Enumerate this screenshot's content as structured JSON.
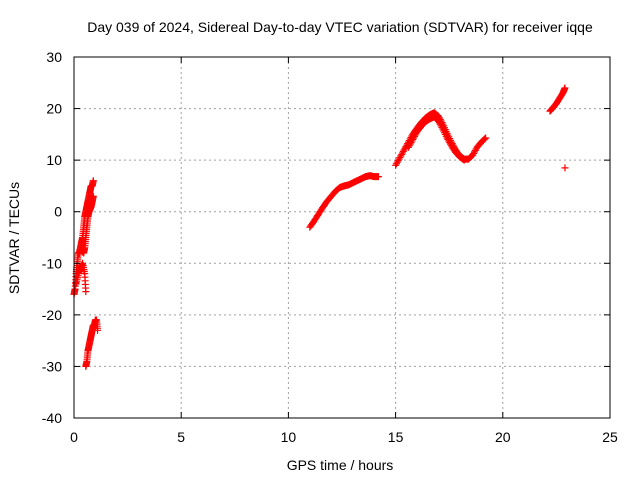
{
  "chart_data": {
    "type": "scatter",
    "title": "Day 039 of 2024, Sidereal Day-to-day VTEC variation (SDTVAR) for receiver iqqe",
    "xlabel": "GPS time / hours",
    "ylabel": "SDTVAR / TECUs",
    "xlim": [
      0,
      25
    ],
    "ylim": [
      -40,
      30
    ],
    "xticks": [
      0,
      5,
      10,
      15,
      20,
      25
    ],
    "yticks": [
      -40,
      -30,
      -20,
      -10,
      0,
      10,
      20,
      30
    ],
    "grid": true,
    "marker": "+",
    "color": "#ff0000",
    "series": [
      {
        "name": "SDTVAR",
        "segments": [
          {
            "x": [
              0.0,
              0.05,
              0.1,
              0.15,
              0.2,
              0.25,
              0.3,
              0.35,
              0.4,
              0.45,
              0.5,
              0.55,
              0.6,
              0.65,
              0.7,
              0.75,
              0.8,
              0.85,
              0.9
            ],
            "y": [
              -16,
              -15,
              -12,
              -10,
              -8,
              -8,
              -7,
              -6,
              -5,
              -3,
              -1,
              0,
              1,
              2,
              3,
              4,
              5,
              5,
              6
            ]
          },
          {
            "x": [
              0.1,
              0.2,
              0.3,
              0.4,
              0.5,
              0.55
            ],
            "y": [
              -14,
              -12,
              -11,
              -10,
              -12,
              -15.5
            ]
          },
          {
            "x": [
              0.35,
              0.45,
              0.5,
              0.55,
              0.6,
              0.65,
              0.7,
              0.75,
              0.8,
              0.85,
              0.9
            ],
            "y": [
              -7.5,
              -8,
              -7,
              -5,
              -3,
              -1,
              0,
              0.5,
              1,
              2,
              3
            ]
          },
          {
            "x": [
              0.55,
              0.6,
              0.65,
              0.7,
              0.75,
              0.8,
              0.85,
              0.9,
              0.95,
              1.0,
              1.05,
              1.1
            ],
            "y": [
              -30,
              -29,
              -27,
              -26,
              -25,
              -24,
              -23,
              -22,
              -22,
              -21,
              -21,
              -23
            ]
          },
          {
            "x": [
              11.0,
              11.2,
              11.4,
              11.6,
              11.8,
              12.0,
              12.2,
              12.4,
              12.6,
              12.8,
              13.0,
              13.2,
              13.4,
              13.6,
              13.8,
              14.0,
              14.2
            ],
            "y": [
              -3,
              -1.8,
              -0.5,
              0.8,
              2,
              3,
              4,
              4.7,
              5,
              5.2,
              5.6,
              6,
              6.4,
              6.8,
              7,
              6.8,
              6.8
            ]
          },
          {
            "x": [
              15.0,
              15.2,
              15.4,
              15.6,
              15.8,
              16.0,
              16.2,
              16.4,
              16.6,
              16.8,
              17.0,
              17.2,
              17.4,
              17.6,
              17.8,
              18.0,
              18.2,
              18.4,
              18.6,
              18.8,
              19.0,
              19.2
            ],
            "y": [
              9,
              10.5,
              12,
              13.5,
              15,
              16.2,
              17.3,
              18.2,
              18.8,
              19.2,
              18.5,
              17,
              15.2,
              13.5,
              12,
              10.8,
              10.2,
              10.2,
              11,
              12.5,
              13.5,
              14.3
            ]
          },
          {
            "x": [
              15.6,
              15.8,
              16.0,
              16.2,
              16.4,
              16.6,
              16.8,
              17.0,
              17.2,
              17.4,
              17.6,
              17.8,
              18.0,
              18.2
            ],
            "y": [
              12.5,
              14,
              15.5,
              16.6,
              17.5,
              18,
              18.4,
              17.6,
              16,
              14.3,
              12.8,
              11.5,
              10.6,
              10
            ]
          },
          {
            "x": [
              22.2,
              22.35,
              22.5,
              22.65,
              22.8,
              22.9
            ],
            "y": [
              19.5,
              20.2,
              21,
              22,
              23,
              24
            ]
          },
          {
            "x": [
              22.9
            ],
            "y": [
              8.5
            ]
          }
        ]
      }
    ]
  }
}
